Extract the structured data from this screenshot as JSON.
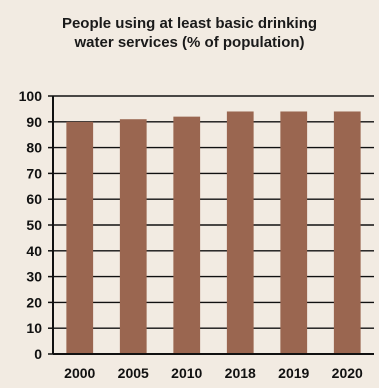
{
  "chart_data": {
    "type": "bar",
    "title_lines": [
      "People using at least basic drinking",
      "water services (% of population)"
    ],
    "categories": [
      "2000",
      "2005",
      "2010",
      "2018",
      "2019",
      "2020"
    ],
    "series": [
      {
        "values": [
          90,
          91,
          92,
          94,
          94,
          94
        ]
      }
    ],
    "ylim": [
      0,
      100
    ],
    "yticks": [
      0,
      10,
      20,
      30,
      40,
      50,
      60,
      70,
      80,
      90,
      100
    ],
    "grid": true,
    "legend": "none",
    "colors": {
      "bar": "#9a6650",
      "background": "#f2ebe2",
      "axis": "#111111",
      "grid": "#111111"
    }
  }
}
